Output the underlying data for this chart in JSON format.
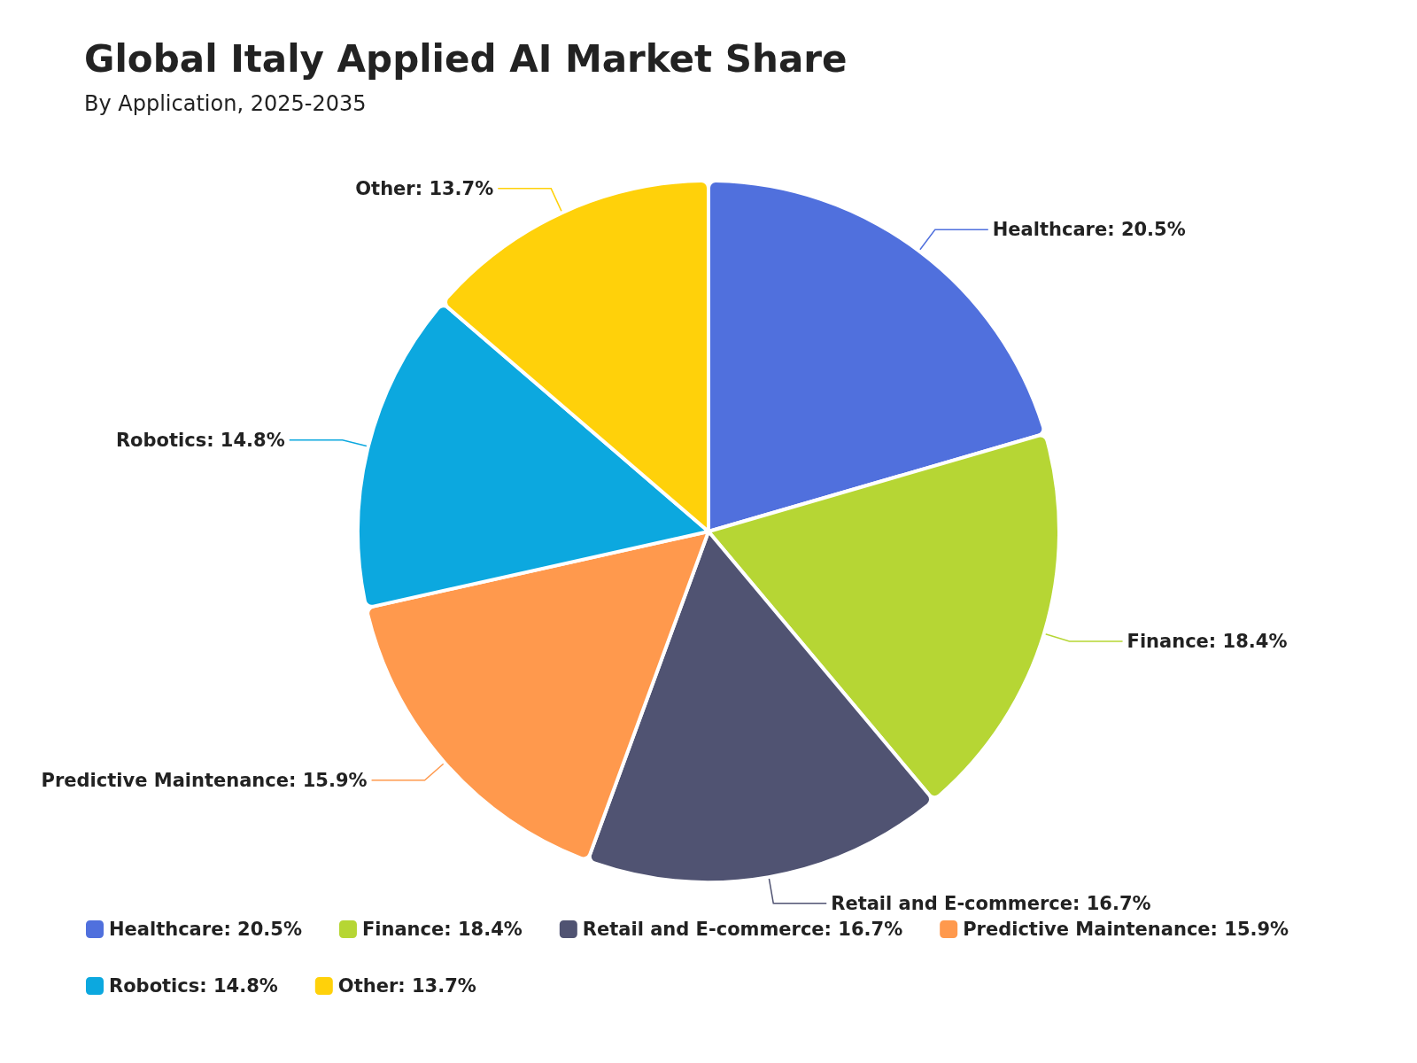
{
  "chart_data": {
    "type": "pie",
    "title": "Global Italy Applied AI Market Share",
    "subtitle": "By Application, 2025-2035",
    "categories": [
      "Healthcare: 20.5%",
      "Finance: 18.4%",
      "Retail and E-commerce: 16.7%",
      "Predictive Maintenance: 15.9%",
      "Robotics: 14.8%",
      "Other: 13.7%"
    ],
    "values": [
      20.5,
      18.4,
      16.7,
      15.9,
      14.8,
      13.7
    ],
    "colors": [
      "#5070dd",
      "#b6d634",
      "#505372",
      "#ff994d",
      "#0ca8df",
      "#ffd10a"
    ],
    "legend": "bottom"
  }
}
